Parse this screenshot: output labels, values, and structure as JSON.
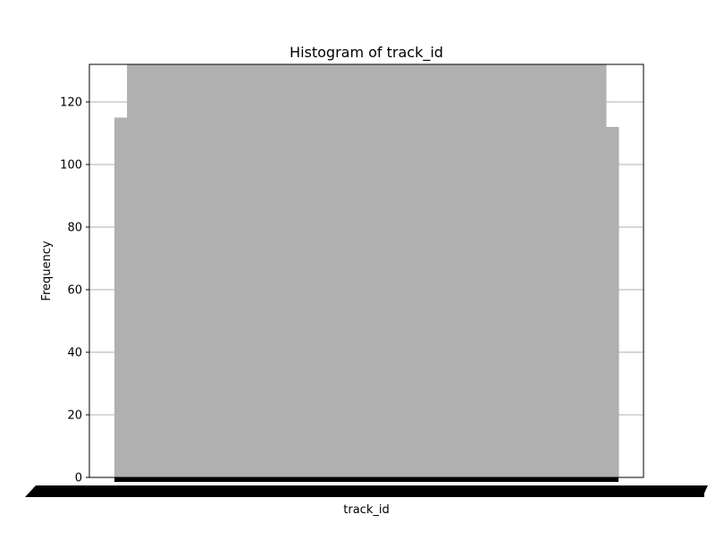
{
  "chart_data": {
    "type": "bar",
    "title": "Histogram of track_id",
    "xlabel": "track_id",
    "ylabel": "Frequency",
    "ylim": [
      0,
      132
    ],
    "yticks": [
      0,
      20,
      40,
      60,
      80,
      100,
      120
    ],
    "grid": "horizontal",
    "legend": "none",
    "bar_color": "#b0b0b0",
    "x_tick_color": "#000000",
    "bin_count": 40,
    "values": [
      115,
      132,
      132,
      132,
      132,
      132,
      132,
      132,
      132,
      132,
      132,
      132,
      132,
      132,
      132,
      132,
      132,
      132,
      132,
      132,
      132,
      132,
      132,
      132,
      132,
      132,
      132,
      132,
      132,
      132,
      132,
      132,
      132,
      132,
      132,
      132,
      132,
      132,
      132,
      112
    ]
  }
}
